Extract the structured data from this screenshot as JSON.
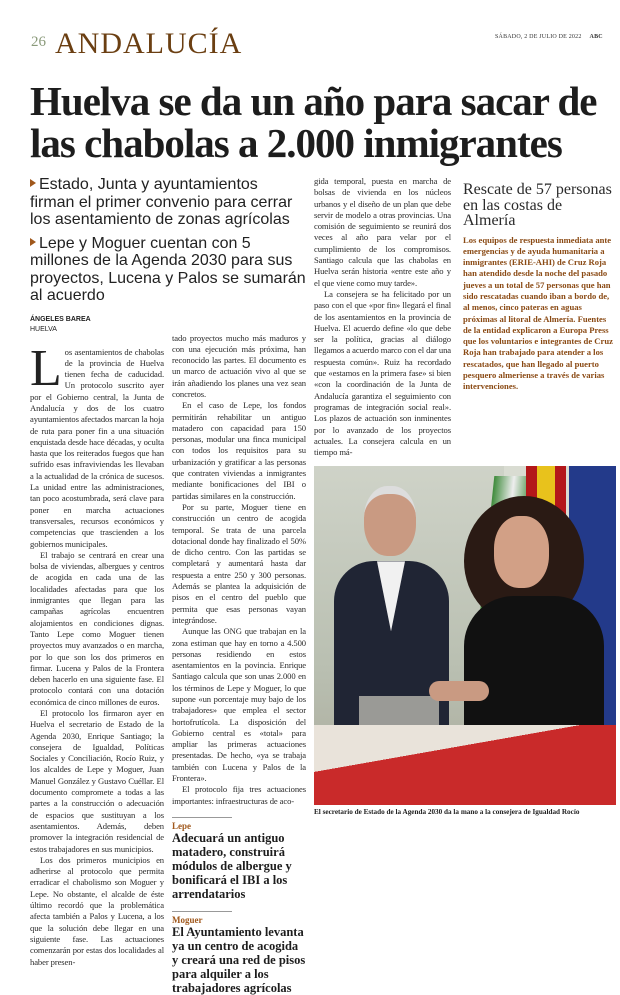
{
  "header": {
    "page_number": "26",
    "section": "ANDALUCÍA",
    "date": "SÁBADO, 2 DE JULIO DE 2022",
    "publication": "ABC"
  },
  "watermark": "ABC",
  "article": {
    "headline": "Huelva se da un año para sacar de las chabolas a 2.000 inmigrantes",
    "subheads": [
      "Estado, Junta y ayuntamientos firman el primer convenio para cerrar los asentamiento de zonas agrícolas",
      "Lepe y Moguer cuentan con 5 millones de la Agenda 2030 para sus proyectos, Lucena y Palos se sumarán al acuerdo"
    ],
    "byline": {
      "author": "ÁNGELES BAREA",
      "location": "HUELVA"
    },
    "drop_cap": "L",
    "columns": [
      [
        "os asentamientos de chabolas de la provincia de Huelva tienen fecha de caducidad. Un protocolo suscrito ayer por el Gobierno central, la Junta de Andalucía y dos de los cuatro ayuntamientos afectados marcan la hoja de ruta para poner fin a una situación enquistada desde hace décadas, y oculta hasta que los reiterados fuegos que han sufrido esas infraviviendas les llevaban a la actualidad de la crónica de sucesos. La unidad entre las administraciones, tan poco acostumbrada, será clave para poner en marcha actuaciones transversales, recursos económicos y competencias que trascienden a los gobiernos municipales.",
        "El trabajo se centrará en crear una bolsa de viviendas, albergues y centros de acogida en cada una de las localidades afectadas para que los inmigrantes que llegan para las campañas agrícolas encuentren alojamientos en condiciones dignas. Tanto Lepe como Moguer tienen proyectos muy avanzados o en marcha, por lo que son los dos primeros en firmar. Lucena y Palos de la Frontera deben hacerlo en una siguiente fase. El protocolo contará con una dotación económica de cinco millones de euros.",
        "El protocolo los firmaron ayer en Huelva el secretario de Estado de la Agenda 2030, Enrique Santiago; la consejera de Igualdad, Políticas Sociales y Conciliación, Rocío Ruiz, y los alcaldes de Lepe y Moguer, Juan Manuel González y Gustavo Cuéllar. El documento compromete a todas a las partes a la construcción o adecuación de espacios que sustituyan a los asentamientos. Además, deben promover la integración residencial de estos trabajadores en sus municipios.",
        "Los dos primeros municipios en adherirse al protocolo que permita erradicar el chabolismo son Moguer y Lepe. No obstante, el alcalde de éste último recordó que la problemática afecta también a Palos y Lucena, a los que la solución debe llegar en una siguiente fase. Las actuaciones comenzarán por estas dos localidades al haber presen-"
      ],
      [
        "tado proyectos mucho más maduros y con una ejecución más próxima, han reconocido las partes. El documento es un marco de actuación vivo al que se irán añadiendo los planes una vez sean concretos.",
        "En el caso de Lepe, los fondos permitirán rehabilitar un antiguo matadero con capacidad para 150 personas, modular una finca municipal con todos los requisitos para su urbanización y gratificar a las personas que contraten viviendas a inmigrantes mediante bonificaciones del IBI o partidas similares en la construcción.",
        "Por su parte, Moguer tiene en construcción un centro de acogida temporal. Se trata de una parcela dotacional donde hay finalizado el 50% de dicho centro. Con las partidas se completará y aumentará hasta dar respuesta a entre 250 y 300 personas. Además se plantea la adquisición de pisos en el centro del pueblo que permita que esas personas vayan integrándose.",
        "Aunque las ONG que trabajan en la zona estiman que hay en torno a 4.500 personas residiendo en estos asentamientos en la povincia. Enrique Santiago calcula que son unas 2.000 en los términos de Lepe y Moguer, lo que supone «un porcentaje muy bajo de los trabajadores» que emplea el sector hortofrutícola. La disposición del Gobierno central es «total» para ampliar las primeras actuaciones presentadas. De hecho, «ya se trabaja también con Lucena y Palos de la Frontera».",
        "El protocolo fija tres actuaciones importantes: infraestructuras de aco-"
      ],
      [
        "gida temporal, puesta en marcha de bolsas de vivienda en los núcleos urbanos y el diseño de un plan que debe servir de modelo a otras provincias. Una comisión de seguimiento se reunirá dos veces al año para velar por el cumplimiento de los compromisos. Santiago calcula que las chabolas en Huelva serán historia «entre este año y el que viene como muy tarde».",
        "La consejera se ha felicitado por un paso con el que «por fin» llegará el final de los asentamientos en la provincia de Huelva. El acuerdo define «lo que debe ser la política, gracias al diálogo llegamos a acuerdo marco con el dar una respuesta común». Ruiz ha recordado que «estamos en la primera fase» si bien «con la coordinación de la Junta de Andalucía garantiza el seguimiento con programas de integración social real». Los plazos de actuación son inminentes por lo avanzado de los proyectos actuales. La consejera calcula en un tiempo má-"
      ]
    ],
    "highlights": [
      {
        "kicker": "Lepe",
        "text": "Adecuará un antiguo matadero, construirá módulos de albergue y bonificará el IBI a los arrendatarios"
      },
      {
        "kicker": "Moguer",
        "text": "El Ayuntamiento levanta ya un centro de acogida y creará una red de pisos para alquiler a los trabajadores agrícolas"
      }
    ],
    "photo_caption": "El secretario de Estado de la Agenda 2030 da la mano a la consejera de Igualdad Rocío"
  },
  "sidebar": {
    "title": "Rescate de  57 personas en las costas de Almería",
    "body": "Los equipos de respuesta inmediata ante emergencias y de ayuda humanitaria a inmigrantes (ERIE-AHI) de Cruz Roja han atendido desde la noche del pasado jueves a un total de 57 personas que han sido rescatadas cuando iban a bordo de, al menos, cinco pateras en aguas próximas al litoral de Almería. Fuentes de la entidad explicaron a Europa Press que los voluntarios e integrantes de Cruz Roja han trabajado para atender a los rescatados, que han llegado al puerto pesquero almeriense a través de varias intervenciones."
  },
  "colors": {
    "section": "#6b3f12",
    "accent": "#a0581c",
    "sidebar_text": "#8a4a14"
  }
}
